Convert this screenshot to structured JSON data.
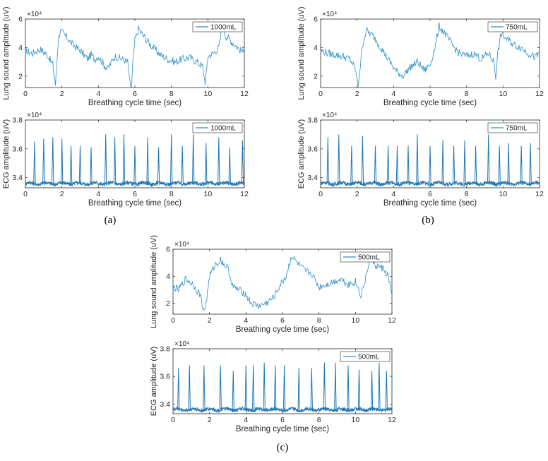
{
  "colors": {
    "series": "#2c8fc9",
    "ecg_series": "#1f77b4",
    "axis": "#262626"
  },
  "captions": [
    "(a)",
    "(b)",
    "(c)"
  ],
  "chart_data": [
    {
      "type": "line",
      "panel": "a",
      "name": "lung-1000",
      "legend": "1000mL",
      "legend_position": "top-right",
      "xlabel": "Breathing cycle time (sec)",
      "ylabel": "Lung sound amplitude (uV)",
      "exponent": "×10⁴",
      "xlim": [
        0,
        12
      ],
      "ylim": [
        1.2,
        6
      ],
      "xticks": [
        "0",
        "2",
        "4",
        "6",
        "8",
        "10",
        "12"
      ],
      "yticks": [
        "2",
        "4",
        "6"
      ],
      "x": [
        0,
        0.4,
        0.8,
        1.2,
        1.5,
        1.65,
        1.7,
        1.8,
        1.9,
        2.2,
        2.6,
        3.0,
        3.4,
        3.6,
        3.8,
        4.0,
        4.2,
        4.5,
        4.9,
        5.3,
        5.6,
        5.75,
        5.82,
        5.88,
        6.0,
        6.2,
        6.6,
        7.0,
        7.4,
        7.8,
        8.2,
        8.6,
        9.0,
        9.4,
        9.7,
        9.85,
        9.92,
        10.0,
        10.3,
        10.6,
        10.8,
        11.0,
        11.4,
        11.8,
        12.0
      ],
      "y": [
        3.8,
        3.6,
        3.9,
        3.5,
        2.8,
        1.4,
        2.5,
        4.5,
        5.2,
        4.8,
        4.2,
        3.8,
        3.2,
        3.5,
        3.2,
        3.4,
        3.0,
        2.5,
        3.4,
        3.2,
        3.0,
        1.3,
        1.2,
        2.8,
        4.5,
        5.3,
        4.6,
        4.0,
        3.5,
        3.2,
        3.0,
        3.2,
        3.3,
        3.0,
        2.7,
        1.6,
        2.2,
        3.4,
        3.6,
        4.0,
        5.5,
        4.8,
        4.3,
        3.8,
        3.6
      ]
    },
    {
      "type": "line",
      "panel": "a",
      "name": "ecg-1000",
      "legend": "1000mL",
      "legend_position": "top-right",
      "xlabel": "Breathing cycle time (sec)",
      "ylabel": "ECG amplitude (uV)",
      "exponent": "×10⁴",
      "xlim": [
        0,
        12
      ],
      "ylim": [
        3.33,
        3.8
      ],
      "xticks": [
        "0",
        "2",
        "4",
        "6",
        "8",
        "10",
        "12"
      ],
      "yticks": [
        "3.4",
        "3.6",
        "3.8"
      ],
      "baseline": 3.36,
      "noise": 0.02,
      "peak_x": [
        0.5,
        1.0,
        1.5,
        2.0,
        2.5,
        3.0,
        3.6,
        4.4,
        4.9,
        5.4,
        6.0,
        6.7,
        7.3,
        8.0,
        8.6,
        9.2,
        9.9,
        10.6,
        11.2,
        11.9
      ],
      "peak_y": [
        3.65,
        3.67,
        3.68,
        3.67,
        3.62,
        3.62,
        3.61,
        3.7,
        3.68,
        3.7,
        3.62,
        3.68,
        3.61,
        3.7,
        3.62,
        3.7,
        3.64,
        3.68,
        3.61,
        3.66
      ]
    },
    {
      "type": "line",
      "panel": "b",
      "name": "lung-750",
      "legend": "750mL",
      "legend_position": "top-right",
      "xlabel": "Breathing cycle time (sec)",
      "ylabel": "Lung sound amplitude (uV)",
      "exponent": "×10⁴",
      "xlim": [
        0,
        12
      ],
      "ylim": [
        1.2,
        6
      ],
      "xticks": [
        "0",
        "2",
        "4",
        "6",
        "8",
        "10",
        "12"
      ],
      "yticks": [
        "2",
        "4",
        "6"
      ],
      "x": [
        0,
        0.4,
        0.8,
        1.2,
        1.6,
        1.9,
        2.05,
        2.15,
        2.3,
        2.5,
        2.9,
        3.3,
        3.7,
        4.1,
        4.5,
        4.9,
        5.3,
        5.7,
        6.0,
        6.3,
        6.5,
        6.8,
        7.2,
        7.6,
        8.0,
        8.4,
        8.8,
        9.2,
        9.5,
        9.6,
        9.7,
        9.9,
        10.2,
        10.6,
        11.0,
        11.4,
        11.8,
        12.0
      ],
      "y": [
        3.8,
        3.6,
        3.5,
        3.4,
        3.2,
        2.5,
        1.3,
        2.4,
        4.2,
        5.2,
        4.8,
        4.0,
        3.2,
        2.4,
        2.0,
        2.6,
        3.0,
        2.4,
        2.8,
        4.2,
        5.5,
        5.0,
        4.2,
        3.6,
        3.4,
        3.6,
        3.2,
        3.6,
        3.0,
        1.9,
        3.5,
        5.0,
        4.6,
        4.2,
        4.0,
        3.6,
        3.3,
        3.6
      ]
    },
    {
      "type": "line",
      "panel": "b",
      "name": "ecg-750",
      "legend": "750mL",
      "legend_position": "top-right",
      "xlabel": "Breathing cycle time (sec)",
      "ylabel": "ECG amplitude (uV)",
      "exponent": "×10⁴",
      "xlim": [
        0,
        12
      ],
      "ylim": [
        3.33,
        3.8
      ],
      "xticks": [
        "0",
        "2",
        "4",
        "6",
        "8",
        "10",
        "12"
      ],
      "yticks": [
        "3.4",
        "3.6",
        "3.8"
      ],
      "baseline": 3.36,
      "noise": 0.02,
      "peak_x": [
        0.4,
        1.0,
        1.7,
        2.3,
        3.0,
        3.7,
        4.2,
        4.8,
        5.3,
        6.0,
        6.7,
        7.3,
        7.9,
        8.5,
        9.2,
        9.8,
        10.3,
        11.0,
        11.5
      ],
      "peak_y": [
        3.68,
        3.7,
        3.62,
        3.69,
        3.62,
        3.62,
        3.62,
        3.62,
        3.7,
        3.62,
        3.66,
        3.62,
        3.66,
        3.62,
        3.7,
        3.62,
        3.64,
        3.62,
        3.64
      ]
    },
    {
      "type": "line",
      "panel": "c",
      "name": "lung-500",
      "legend": "500mL",
      "legend_position": "top-right",
      "xlabel": "Breathing cycle time (sec)",
      "ylabel": "Lung sound amplitude (uV)",
      "exponent": "×10⁴",
      "xlim": [
        0,
        12
      ],
      "ylim": [
        1.2,
        6
      ],
      "xticks": [
        "0",
        "2",
        "4",
        "6",
        "8",
        "10",
        "12"
      ],
      "yticks": [
        "2",
        "4",
        "6"
      ],
      "x": [
        0,
        0.3,
        0.7,
        1.1,
        1.5,
        1.7,
        1.85,
        2.0,
        2.3,
        2.6,
        3.0,
        3.3,
        3.6,
        3.9,
        4.3,
        4.7,
        5.1,
        5.5,
        5.9,
        6.2,
        6.5,
        6.8,
        7.2,
        7.6,
        8.0,
        8.4,
        8.8,
        9.2,
        9.6,
        10.0,
        10.3,
        10.6,
        10.8,
        11.1,
        11.5,
        11.8,
        12.0
      ],
      "y": [
        3.2,
        3.0,
        3.8,
        3.4,
        2.6,
        1.3,
        2.4,
        4.0,
        4.8,
        5.2,
        4.6,
        3.2,
        3.0,
        2.8,
        2.0,
        1.8,
        2.0,
        2.4,
        3.4,
        4.0,
        5.5,
        5.0,
        4.4,
        4.2,
        3.2,
        3.4,
        3.6,
        3.8,
        3.4,
        3.6,
        2.6,
        4.0,
        5.6,
        4.8,
        4.6,
        4.0,
        2.6
      ]
    },
    {
      "type": "line",
      "panel": "c",
      "name": "ecg-500",
      "legend": "500mL",
      "legend_position": "top-right",
      "xlabel": "Breathing cycle time (sec)",
      "ylabel": "ECG amplitude (uV)",
      "exponent": "×10⁴",
      "xlim": [
        0,
        12
      ],
      "ylim": [
        3.33,
        3.8
      ],
      "xticks": [
        "0",
        "2",
        "4",
        "6",
        "8",
        "10",
        "12"
      ],
      "yticks": [
        "3.4",
        "3.6",
        "3.8"
      ],
      "baseline": 3.36,
      "noise": 0.02,
      "peak_x": [
        0.3,
        0.9,
        1.7,
        2.6,
        3.3,
        4.0,
        4.4,
        5.0,
        5.6,
        6.1,
        6.9,
        7.6,
        8.3,
        8.9,
        9.6,
        10.2,
        10.9,
        11.3,
        11.7
      ],
      "peak_y": [
        3.66,
        3.68,
        3.68,
        3.68,
        3.64,
        3.68,
        3.68,
        3.7,
        3.68,
        3.68,
        3.66,
        3.66,
        3.7,
        3.7,
        3.68,
        3.65,
        3.64,
        3.7,
        3.64
      ]
    }
  ]
}
